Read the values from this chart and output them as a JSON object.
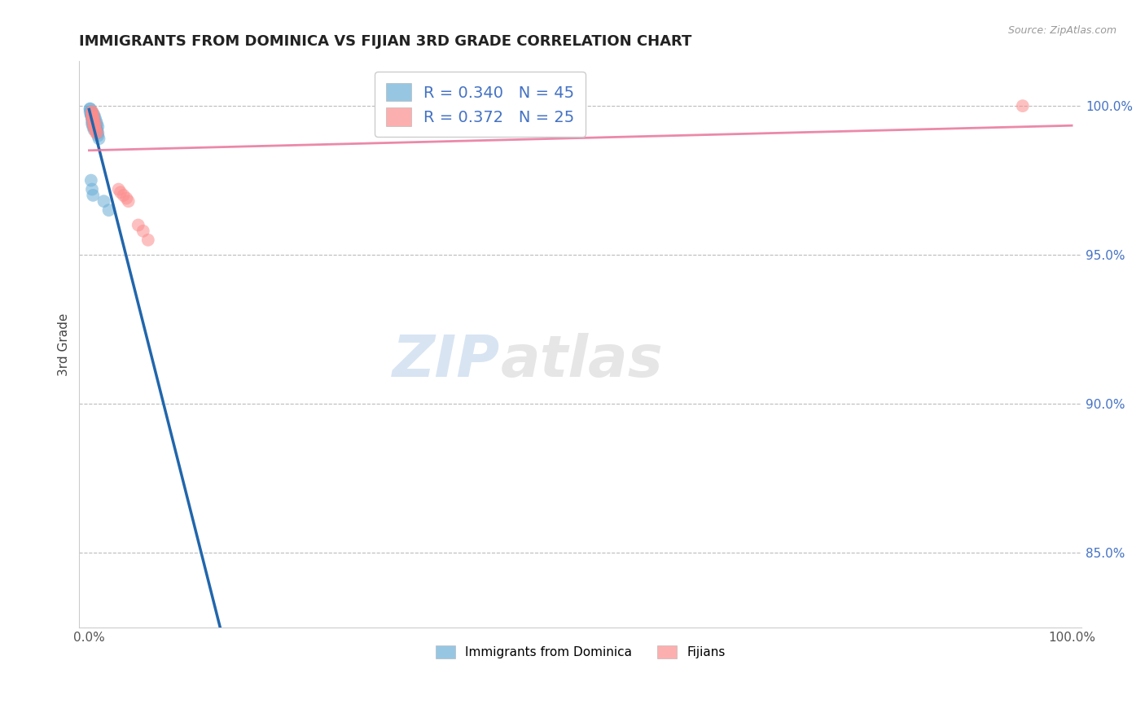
{
  "title": "IMMIGRANTS FROM DOMINICA VS FIJIAN 3RD GRADE CORRELATION CHART",
  "source_text": "Source: ZipAtlas.com",
  "xlabel_bottom": "Immigrants from Dominica",
  "xlabel_bottom2": "Fijians",
  "ylabel": "3rd Grade",
  "blue_R": 0.34,
  "blue_N": 45,
  "pink_R": 0.372,
  "pink_N": 25,
  "blue_color": "#6baed6",
  "pink_color": "#fc8d8d",
  "blue_line_color": "#2166ac",
  "pink_line_color": "#e8749a",
  "watermark_zip": "ZIP",
  "watermark_atlas": "atlas",
  "blue_scatter_x": [
    0.001,
    0.002,
    0.002,
    0.003,
    0.003,
    0.003,
    0.004,
    0.004,
    0.004,
    0.005,
    0.005,
    0.005,
    0.006,
    0.006,
    0.007,
    0.007,
    0.008,
    0.008,
    0.009,
    0.009,
    0.001,
    0.002,
    0.003,
    0.003,
    0.004,
    0.004,
    0.005,
    0.005,
    0.006,
    0.007,
    0.001,
    0.002,
    0.003,
    0.004,
    0.005,
    0.006,
    0.007,
    0.008,
    0.009,
    0.01,
    0.002,
    0.003,
    0.004,
    0.015,
    0.02
  ],
  "blue_scatter_y": [
    0.999,
    0.998,
    0.997,
    0.996,
    0.998,
    0.995,
    0.997,
    0.994,
    0.996,
    0.995,
    0.993,
    0.997,
    0.994,
    0.996,
    0.993,
    0.995,
    0.992,
    0.994,
    0.991,
    0.993,
    0.998,
    0.997,
    0.996,
    0.994,
    0.995,
    0.993,
    0.994,
    0.992,
    0.993,
    0.992,
    0.999,
    0.997,
    0.996,
    0.995,
    0.994,
    0.993,
    0.992,
    0.991,
    0.99,
    0.989,
    0.975,
    0.972,
    0.97,
    0.968,
    0.965
  ],
  "pink_scatter_x": [
    0.003,
    0.005,
    0.004,
    0.006,
    0.003,
    0.008,
    0.005,
    0.004,
    0.006,
    0.003,
    0.03,
    0.035,
    0.04,
    0.032,
    0.038,
    0.005,
    0.004,
    0.003,
    0.007,
    0.006,
    0.05,
    0.055,
    0.06,
    0.95,
    0.004
  ],
  "pink_scatter_y": [
    0.998,
    0.995,
    0.997,
    0.993,
    0.996,
    0.991,
    0.994,
    0.996,
    0.992,
    0.998,
    0.972,
    0.97,
    0.968,
    0.971,
    0.969,
    0.993,
    0.996,
    0.997,
    0.991,
    0.994,
    0.96,
    0.958,
    0.955,
    1.0,
    0.994
  ]
}
